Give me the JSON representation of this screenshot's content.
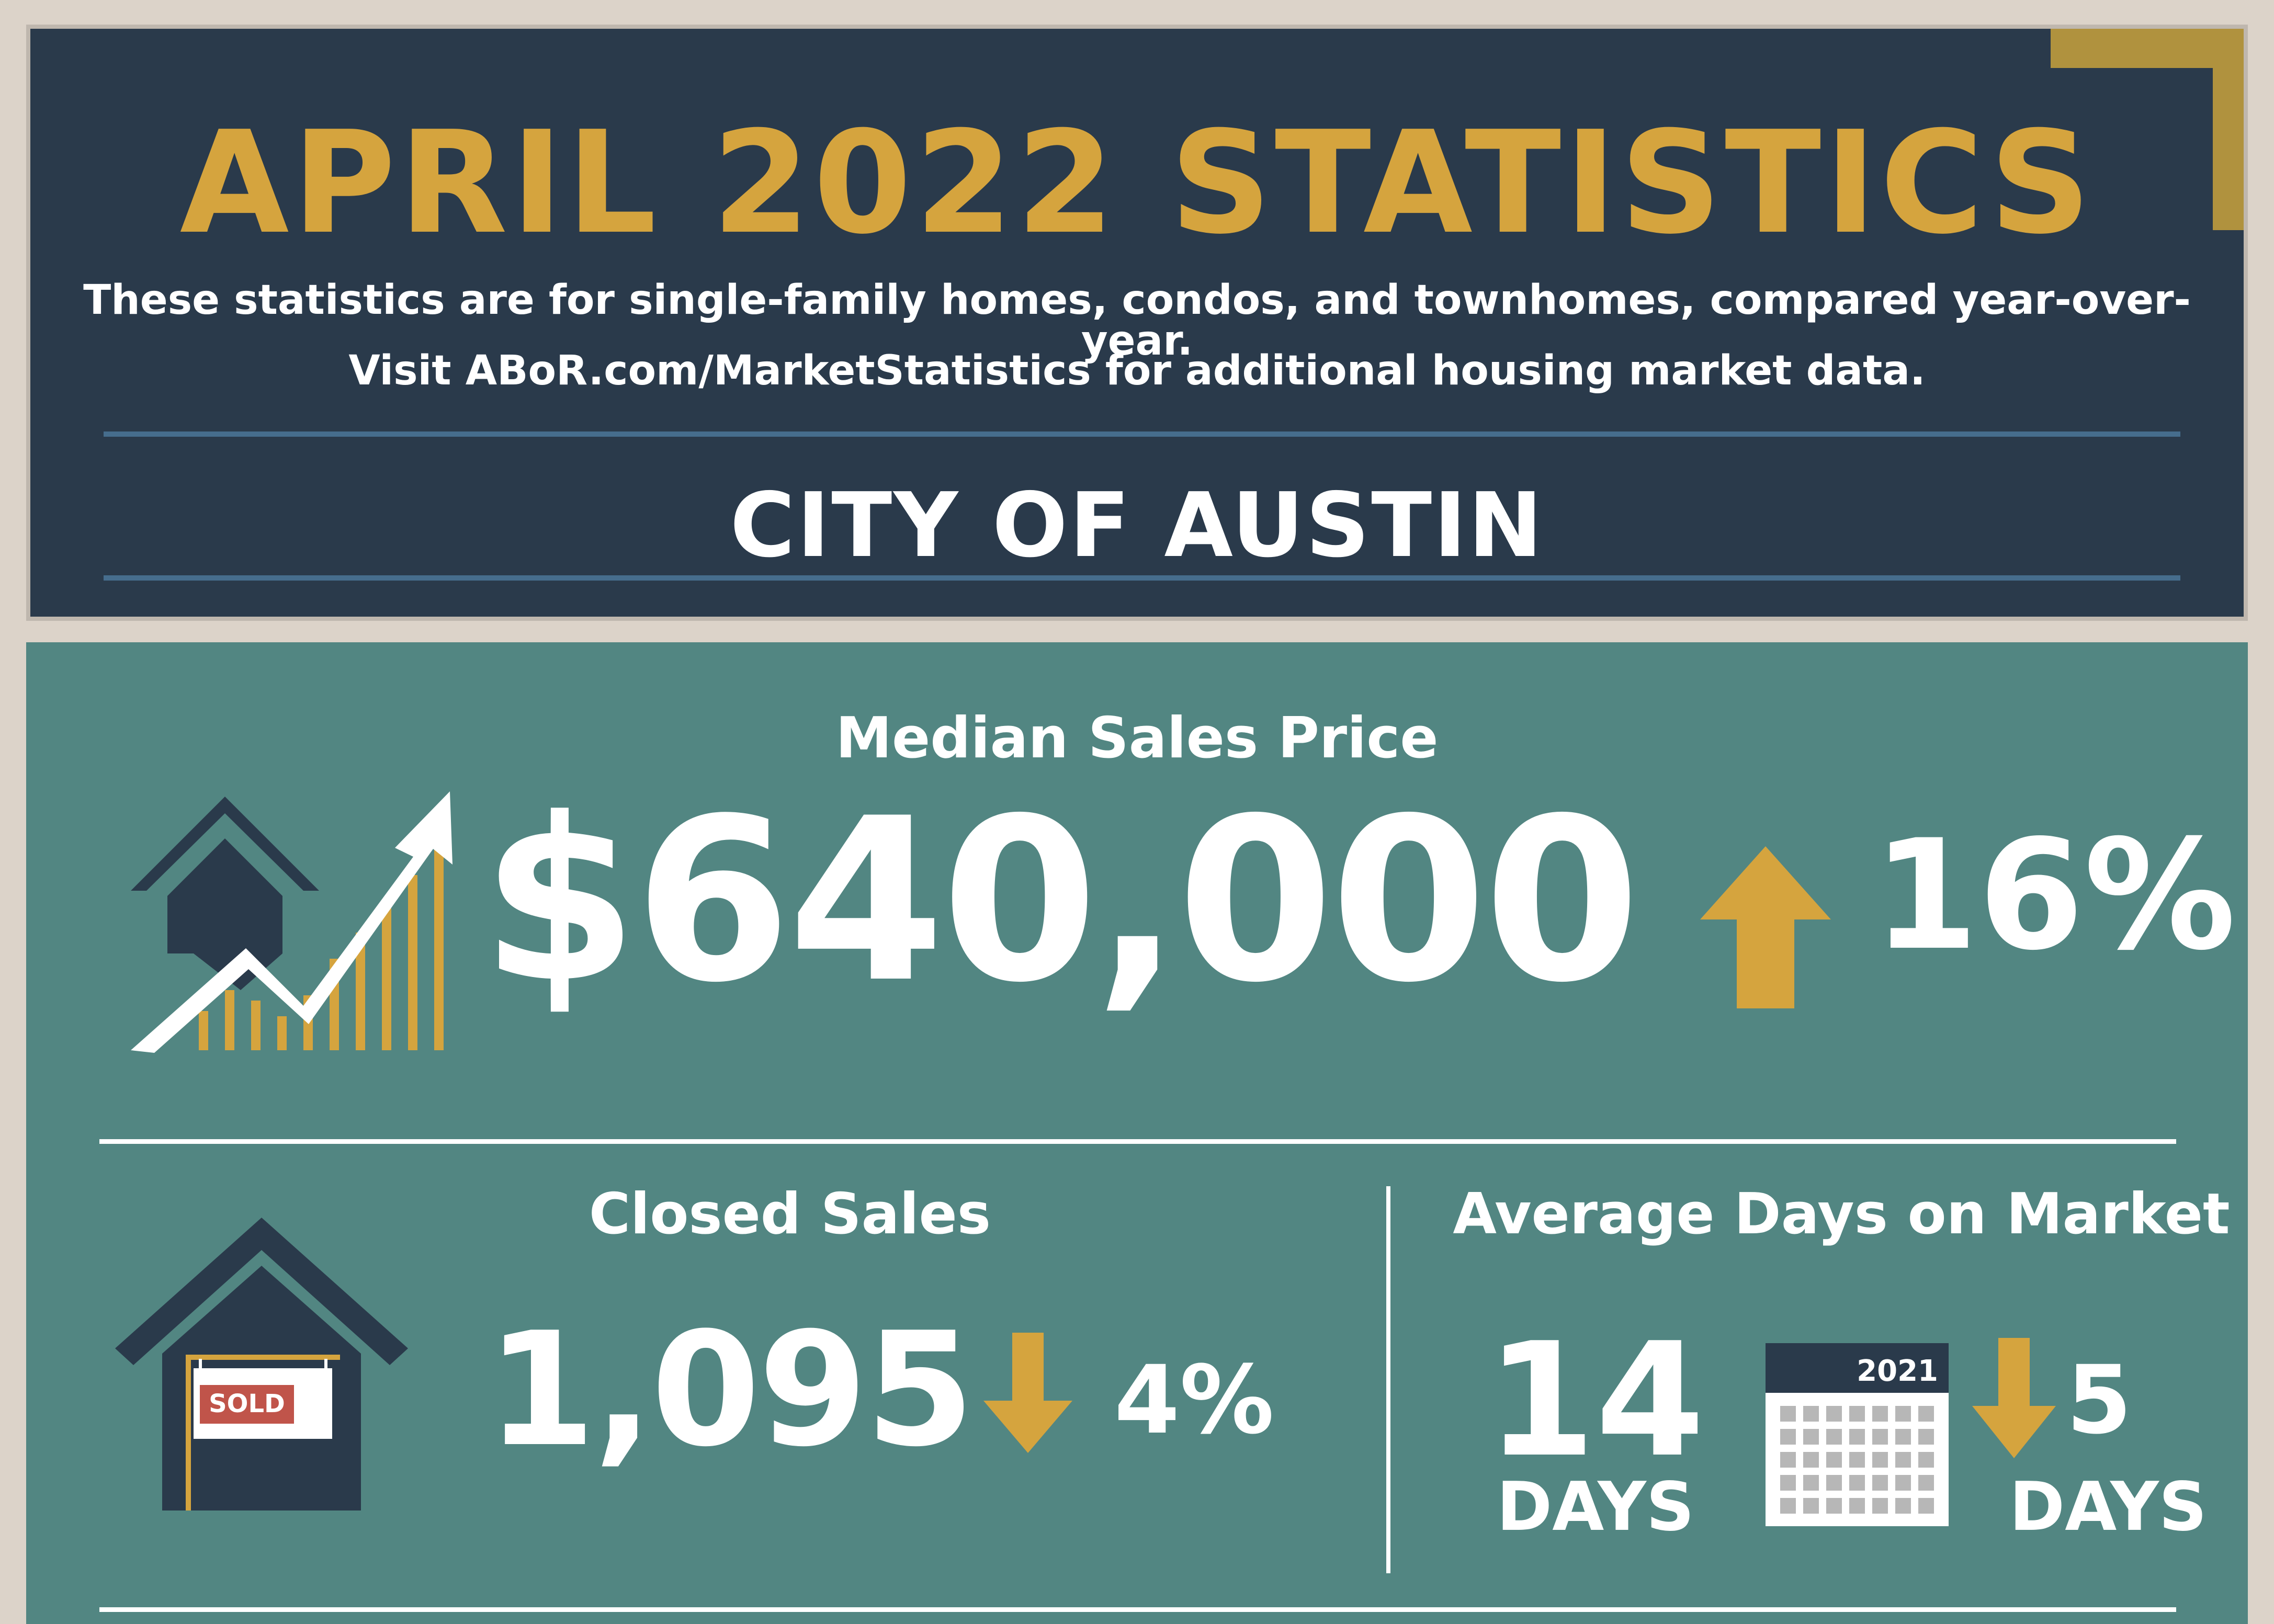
{
  "header": {
    "title": "APRIL 2022 STATISTICS",
    "subtitle_line1": "These statistics are for single-family homes, condos, and townhomes, compared year-over-year.",
    "subtitle_line2": "Visit ABoR.com/MarketStatistics for additional housing market data.",
    "region": "CITY OF AUSTIN"
  },
  "median_sales_price": {
    "label": "Median Sales Price",
    "value": "$640,000",
    "change": "16%",
    "direction": "up",
    "icon": "house-rising-chart-icon"
  },
  "closed_sales": {
    "label": "Closed Sales",
    "value": "1,095",
    "change": "4%",
    "direction": "down",
    "icon": "sold-house-icon",
    "sign_text": "SOLD"
  },
  "average_days_on_market": {
    "label": "Average Days on Market",
    "value": "14",
    "unit": "DAYS",
    "change_value": "5",
    "change_unit": "DAYS",
    "direction": "down",
    "icon": "calendar-icon",
    "calendar_year": "2021"
  },
  "colors": {
    "navy": "#2a3a4b",
    "gold": "#d5a43e",
    "teal": "#528682",
    "beige": "#dcd3c9",
    "sign_red": "#c0544a"
  }
}
